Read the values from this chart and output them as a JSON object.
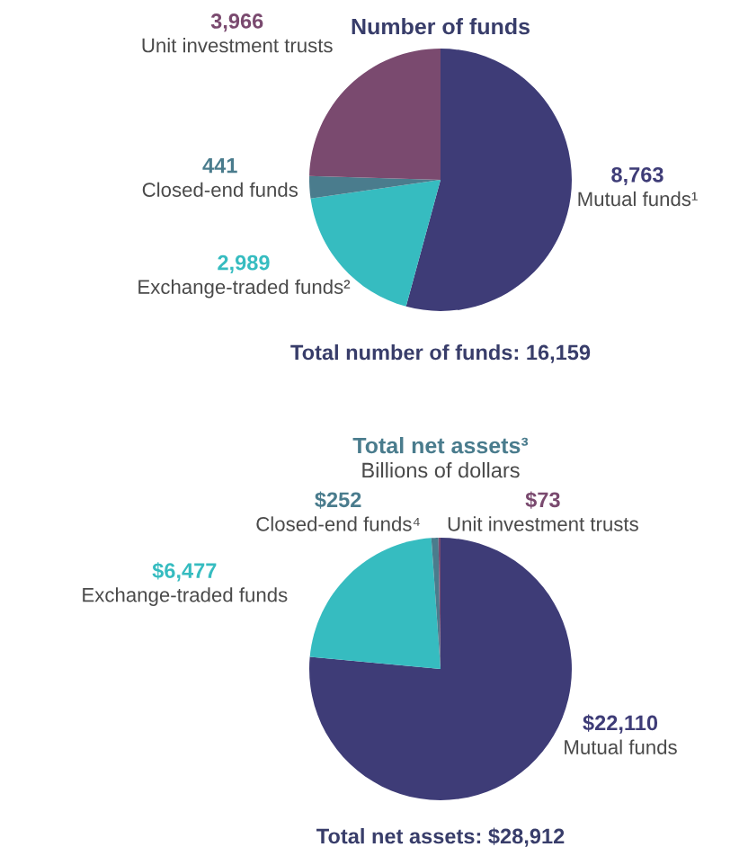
{
  "chart_data": [
    {
      "type": "pie",
      "title": "Number of funds",
      "categories": [
        "Mutual funds¹",
        "Exchange-traded funds²",
        "Closed-end funds",
        "Unit investment trusts"
      ],
      "values": [
        8763,
        2989,
        441,
        3966
      ],
      "colors": [
        "#3e3c77",
        "#36bcc0",
        "#4a7c8d",
        "#7a4a6f"
      ],
      "value_labels": [
        "8,763",
        "2,989",
        "441",
        "3,966"
      ],
      "annotations": [
        "Total number of funds: 16,159"
      ]
    },
    {
      "type": "pie",
      "title": "Total net assets³",
      "subtitle": "Billions of dollars",
      "categories": [
        "Mutual funds",
        "Exchange-traded funds",
        "Closed-end funds⁴",
        "Unit investment trusts"
      ],
      "values": [
        22110,
        6477,
        252,
        73
      ],
      "colors": [
        "#3e3c77",
        "#36bcc0",
        "#4a7c8d",
        "#7a4a6f"
      ],
      "value_labels": [
        "$22,110",
        "$6,477",
        "$252",
        "$73"
      ],
      "annotations": [
        "Total net assets: $28,912"
      ]
    }
  ]
}
